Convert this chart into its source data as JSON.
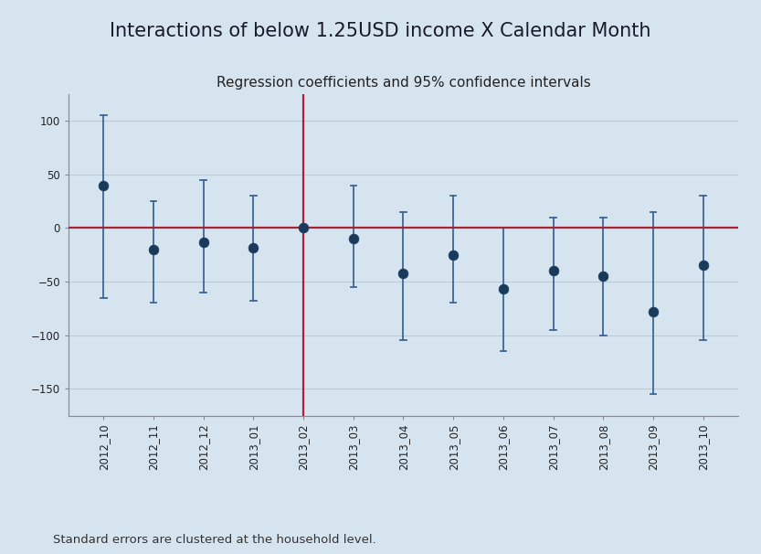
{
  "title": "Interactions of below 1.25USD income X Calendar Month",
  "subtitle": "Regression coefficients and 95% confidence intervals",
  "footnote": "Standard errors are clustered at the household level.",
  "categories": [
    "2012_10",
    "2012_11",
    "2012_12",
    "2013_01",
    "2013_02",
    "2013_03",
    "2013_04",
    "2013_05",
    "2013_06",
    "2013_07",
    "2013_08",
    "2013_09",
    "2013_10"
  ],
  "coefficients": [
    40,
    -20,
    -13,
    -18,
    0,
    -10,
    -42,
    -25,
    -57,
    -40,
    -45,
    -78,
    -35
  ],
  "ci_lower": [
    -65,
    -70,
    -60,
    -68,
    0,
    -55,
    -105,
    -70,
    -115,
    -95,
    -100,
    -155,
    -105
  ],
  "ci_upper": [
    105,
    25,
    45,
    30,
    0,
    40,
    15,
    30,
    0,
    10,
    10,
    15,
    30
  ],
  "vline_x": "2013_02",
  "hline_y": 0,
  "ylim": [
    -175,
    125
  ],
  "yticks": [
    -150,
    -100,
    -50,
    0,
    50,
    100
  ],
  "dot_color": "#1a3a5c",
  "ci_color": "#3d6696",
  "vline_color": "#aa2233",
  "hline_color": "#aa2233",
  "bg_color": "#d6e4ef",
  "plot_bg_color": "#d6e4ef",
  "title_fontsize": 15,
  "subtitle_fontsize": 11,
  "footnote_fontsize": 9.5,
  "tick_fontsize": 8.5
}
